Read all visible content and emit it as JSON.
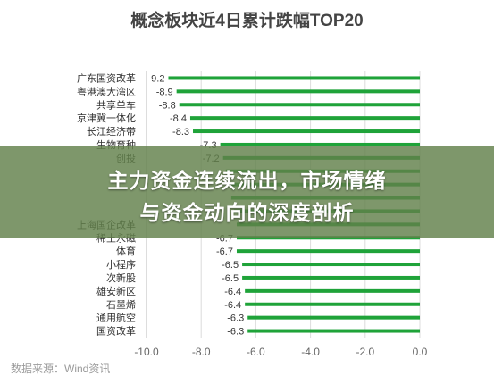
{
  "chart_data": {
    "type": "bar",
    "orientation": "horizontal",
    "title": "概念板块近4日累计跌幅TOP20",
    "categories": [
      "广东国资改革",
      "粤港澳大湾区",
      "共享单车",
      "京津冀一体化",
      "长江经济带",
      "生物育种",
      "创投",
      "",
      "",
      "",
      "",
      "上海国企改革",
      "稀土永磁",
      "体育",
      "小程序",
      "次新股",
      "雄安新区",
      "石墨烯",
      "通用航空",
      "国资改革"
    ],
    "values": [
      -9.2,
      -8.9,
      -8.8,
      -8.4,
      -8.3,
      -7.3,
      -7.2,
      -7.1,
      -7.0,
      -6.9,
      -6.8,
      -6.7,
      -6.7,
      -6.7,
      -6.5,
      -6.5,
      -6.4,
      -6.4,
      -6.3,
      -6.3
    ],
    "value_labels": [
      "-9.2",
      "-8.9",
      "-8.8",
      "-8.4",
      "-8.3",
      "-7.3",
      "-7.2",
      "",
      "",
      "",
      "",
      "",
      "-6.7",
      "-6.7",
      "-6.5",
      "-6.5",
      "-6.4",
      "-6.4",
      "-6.3",
      "-6.3"
    ],
    "xlim": [
      -10.0,
      0.0
    ],
    "xticks": [
      -10.0,
      -8.0,
      -6.0,
      -4.0,
      -2.0,
      0.0
    ],
    "xtick_labels": [
      "-10.0",
      "-8.0",
      "-6.0",
      "-4.0",
      "-2.0",
      "0.0"
    ],
    "grid": true,
    "bar_color": "#1fa339",
    "label_color": "#333333",
    "grid_color": "#dcdcdc"
  },
  "banner": {
    "line1": "主力资金连续流出，市场情绪",
    "line2": "与资金动向的深度剖析"
  },
  "source": "数据来源：Wind资讯"
}
